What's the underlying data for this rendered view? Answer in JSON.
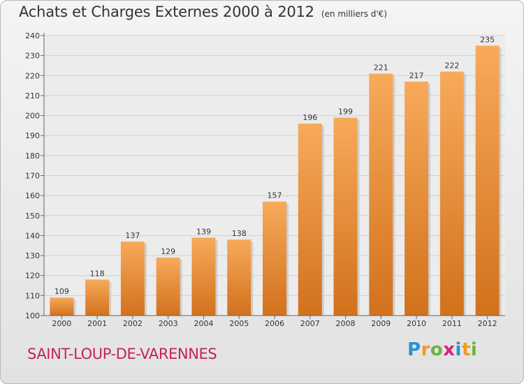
{
  "title": "Achats et Charges Externes 2000 à 2012",
  "unit_note": "(en milliers d'€)",
  "location": "SAINT-LOUP-DE-VARENNES",
  "brand": {
    "text": "Proxiti",
    "letters": [
      "P",
      "r",
      "o",
      "x",
      "i",
      "t",
      "i"
    ],
    "colors": [
      "#2f8fd3",
      "#f39a1c",
      "#6cb33f",
      "#d9227f",
      "#2f8fd3",
      "#f39a1c",
      "#6cb33f"
    ]
  },
  "chart_data": {
    "type": "bar",
    "title": "Achats et Charges Externes 2000 à 2012",
    "subtitle": "(en milliers d'€)",
    "xlabel": "",
    "ylabel": "",
    "categories": [
      "2000",
      "2001",
      "2002",
      "2003",
      "2004",
      "2005",
      "2006",
      "2007",
      "2008",
      "2009",
      "2010",
      "2011",
      "2012"
    ],
    "values": [
      109,
      118,
      137,
      129,
      139,
      138,
      157,
      196,
      199,
      221,
      217,
      222,
      235
    ],
    "ylim": [
      100,
      240
    ],
    "yticks": [
      100,
      110,
      120,
      130,
      140,
      150,
      160,
      170,
      180,
      190,
      200,
      210,
      220,
      230,
      240
    ],
    "grid": true,
    "bar_color": "#f0913a",
    "legend": "none"
  }
}
